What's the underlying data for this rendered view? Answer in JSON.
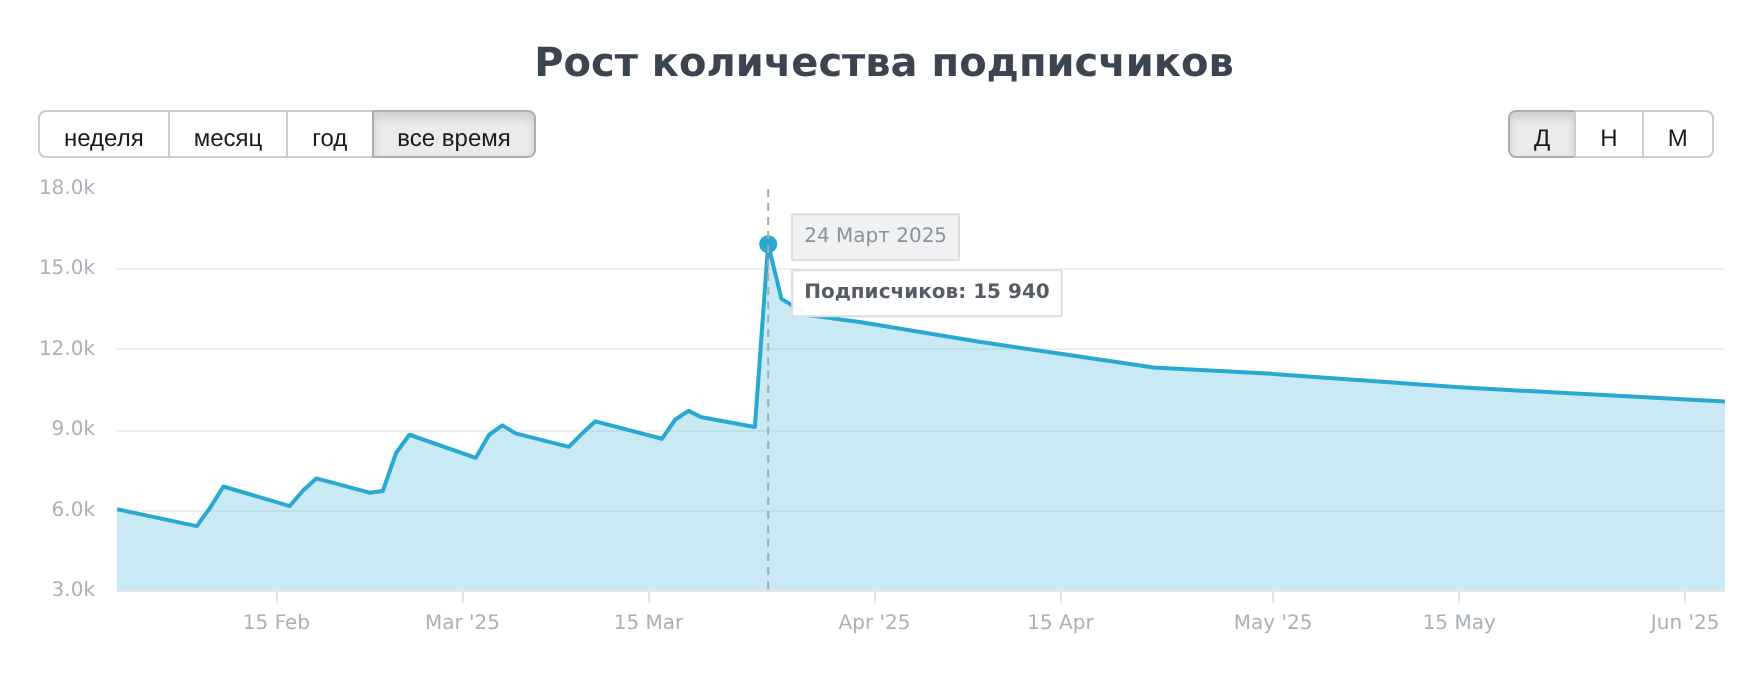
{
  "chart_data": {
    "type": "area",
    "title": "Рост количества подписчиков",
    "annotations": [
      "неделя",
      "месяц",
      "год",
      "все время",
      "Д",
      "Н",
      "М",
      {
        "text": "24 Март 2025",
        "x": "2025-03-24",
        "y": 15940
      },
      {
        "text": "Подписчиков: 15 940",
        "x": "2025-03-24",
        "y": 15940
      }
    ],
    "x": [
      "2025-02-03",
      "2025-02-09",
      "2025-02-10",
      "2025-02-11",
      "2025-02-16",
      "2025-02-17",
      "2025-02-18",
      "2025-02-22",
      "2025-02-23",
      "2025-02-24",
      "2025-02-25",
      "2025-03-02",
      "2025-03-03",
      "2025-03-04",
      "2025-03-05",
      "2025-03-09",
      "2025-03-10",
      "2025-03-11",
      "2025-03-16",
      "2025-03-17",
      "2025-03-18",
      "2025-03-19",
      "2025-03-23",
      "2025-03-24",
      "2025-03-25",
      "2025-03-27",
      "2025-03-31",
      "2025-04-09",
      "2025-04-15",
      "2025-04-22",
      "2025-05-01",
      "2025-05-15",
      "2025-06-04"
    ],
    "series": [
      {
        "color": "#29a9d2",
        "values": [
          6050,
          5420,
          6100,
          6900,
          6170,
          6750,
          7200,
          6670,
          6730,
          8150,
          8830,
          7970,
          8830,
          9180,
          8880,
          8380,
          8880,
          9330,
          8680,
          9390,
          9720,
          9480,
          9120,
          15940,
          13900,
          13300,
          13030,
          12290,
          11850,
          11340,
          11100,
          10600,
          10070
        ]
      }
    ],
    "xlim": [
      "2025-02-03",
      "2025-06-04"
    ],
    "xticks": [
      {
        "value": "2025-02-15",
        "label": "15 Feb"
      },
      {
        "value": "2025-03-01",
        "label": "Mar '25"
      },
      {
        "value": "2025-03-15",
        "label": "15 Mar"
      },
      {
        "value": "2025-04-01",
        "label": "Apr '25"
      },
      {
        "value": "2025-04-15",
        "label": "15 Apr"
      },
      {
        "value": "2025-05-01",
        "label": "May '25"
      },
      {
        "value": "2025-05-15",
        "label": "15 May"
      },
      {
        "value": "2025-06-01",
        "label": "Jun '25"
      }
    ],
    "ylim": [
      3000,
      18000
    ],
    "yticks": [
      {
        "value": 3000,
        "label": "3.0k"
      },
      {
        "value": 6000,
        "label": "6.0k"
      },
      {
        "value": 9000,
        "label": "9.0k"
      },
      {
        "value": 12000,
        "label": "12.0k"
      },
      {
        "value": 15000,
        "label": "15.0k"
      },
      {
        "value": 18000,
        "label": "18.0k"
      }
    ],
    "grid": "y",
    "ref_lines": [
      {
        "axis": "x",
        "value": "2025-03-24",
        "line_style": "dashed",
        "color": "#aaaaaa"
      }
    ]
  }
}
